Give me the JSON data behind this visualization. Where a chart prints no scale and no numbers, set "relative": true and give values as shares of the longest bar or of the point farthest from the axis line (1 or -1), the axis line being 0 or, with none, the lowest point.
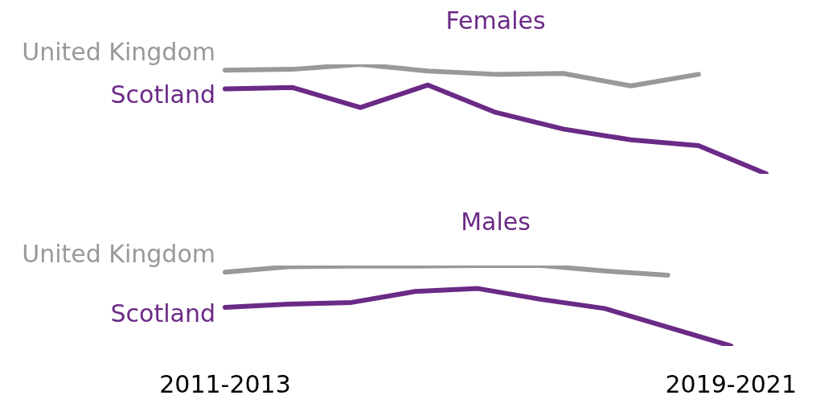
{
  "chart_data": [
    {
      "type": "line",
      "title": "Females",
      "relative": true,
      "tick_labels": false,
      "categories": [
        null,
        null,
        null,
        null,
        null,
        null,
        null,
        null,
        null
      ],
      "series": [
        {
          "name": "United Kingdom",
          "color": "#999999",
          "values": [
            0.947,
            0.955,
            1,
            0.939,
            0.909,
            0.917,
            0.803,
            0.909,
            null
          ]
        },
        {
          "name": "Scotland",
          "color": "#6b2a86",
          "values": [
            0.776,
            0.788,
            0.606,
            0.811,
            0.561,
            0.409,
            0.311,
            0.258,
            0
          ]
        }
      ]
    },
    {
      "type": "line",
      "title": "Males",
      "relative": true,
      "tick_labels": "x",
      "categories": [
        "2011-2013",
        null,
        null,
        null,
        null,
        null,
        null,
        null,
        "2019-2021"
      ],
      "series": [
        {
          "name": "United Kingdom",
          "color": "#999999",
          "values": [
            0.917,
            0.985,
            0.992,
            0.992,
            1,
            1,
            0.932,
            0.88,
            null
          ]
        },
        {
          "name": "Scotland",
          "color": "#6b2a86",
          "values": [
            0.481,
            0.519,
            0.541,
            0.677,
            0.714,
            0.579,
            0.466,
            0.233,
            0
          ]
        }
      ]
    }
  ]
}
